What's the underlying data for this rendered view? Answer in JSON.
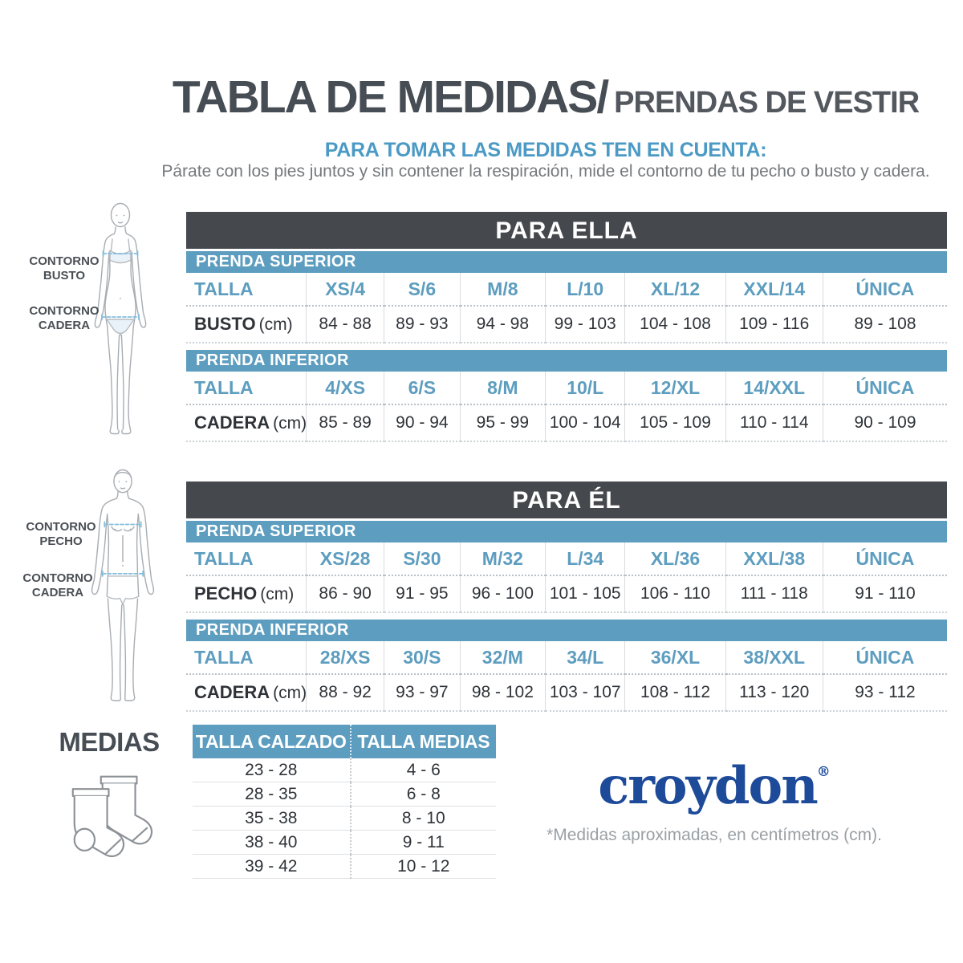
{
  "header": {
    "title_main": "TABLA DE MEDIDAS/",
    "title_sub": "PRENDAS DE VESTIR",
    "subtitle": "PARA TOMAR LAS MEDIDAS TEN EN CUENTA:",
    "description": "Párate con los pies juntos y sin contener la respiración, mide el contorno de tu pecho o busto y cadera."
  },
  "colors": {
    "blue": "#5d9dbf",
    "dark": "#45494e",
    "brand": "#1d4a99",
    "ink": "#474d54"
  },
  "figures": {
    "female": {
      "icon": "female-body-outline-icon",
      "bust_label": "CONTORNO BUSTO",
      "hip_label": "CONTORNO CADERA"
    },
    "male": {
      "icon": "male-body-outline-icon",
      "chest_label": "CONTORNO PECHO",
      "hip_label": "CONTORNO CADERA"
    },
    "socks_icon": "socks-icon"
  },
  "tables": {
    "ella": {
      "title": "PARA ELLA",
      "sections": [
        {
          "banner": "PRENDA SUPERIOR",
          "talla_label": "TALLA",
          "sizes": [
            "XS/4",
            "S/6",
            "M/8",
            "L/10",
            "XL/12",
            "XXL/14",
            "ÚNICA"
          ],
          "measure_label": "BUSTO",
          "measure_unit": "(cm)",
          "values": [
            "84 - 88",
            "89 - 93",
            "94 - 98",
            "99 - 103",
            "104 - 108",
            "109 - 116",
            "89 - 108"
          ]
        },
        {
          "banner": "PRENDA INFERIOR",
          "talla_label": "TALLA",
          "sizes": [
            "4/XS",
            "6/S",
            "8/M",
            "10/L",
            "12/XL",
            "14/XXL",
            "ÚNICA"
          ],
          "measure_label": "CADERA",
          "measure_unit": "(cm)",
          "values": [
            "85 - 89",
            "90 - 94",
            "95 - 99",
            "100 - 104",
            "105 - 109",
            "110 - 114",
            "90 - 109"
          ]
        }
      ]
    },
    "el": {
      "title": "PARA ÉL",
      "sections": [
        {
          "banner": "PRENDA SUPERIOR",
          "talla_label": "TALLA",
          "sizes": [
            "XS/28",
            "S/30",
            "M/32",
            "L/34",
            "XL/36",
            "XXL/38",
            "ÚNICA"
          ],
          "measure_label": "PECHO",
          "measure_unit": "(cm)",
          "values": [
            "86 - 90",
            "91 - 95",
            "96 - 100",
            "101 - 105",
            "106 - 110",
            "111 - 118",
            "91 - 110"
          ]
        },
        {
          "banner": "PRENDA INFERIOR",
          "talla_label": "TALLA",
          "sizes": [
            "28/XS",
            "30/S",
            "32/M",
            "34/L",
            "36/XL",
            "38/XXL",
            "ÚNICA"
          ],
          "measure_label": "CADERA",
          "measure_unit": "(cm)",
          "values": [
            "88 - 92",
            "93 - 97",
            "98 - 102",
            "103 - 107",
            "108 - 112",
            "113 - 120",
            "93 - 112"
          ]
        }
      ]
    }
  },
  "medias": {
    "label": "MEDIAS",
    "headers": [
      "TALLA CALZADO",
      "TALLA MEDIAS"
    ],
    "rows": [
      [
        "23 - 28",
        "4 - 6"
      ],
      [
        "28 - 35",
        "6 - 8"
      ],
      [
        "35 - 38",
        "8 - 10"
      ],
      [
        "38 - 40",
        "9 - 11"
      ],
      [
        "39 - 42",
        "10 - 12"
      ]
    ]
  },
  "footer": {
    "brand": "croydon",
    "registered": "®",
    "note": "*Medidas aproximadas, en centímetros (cm)."
  }
}
